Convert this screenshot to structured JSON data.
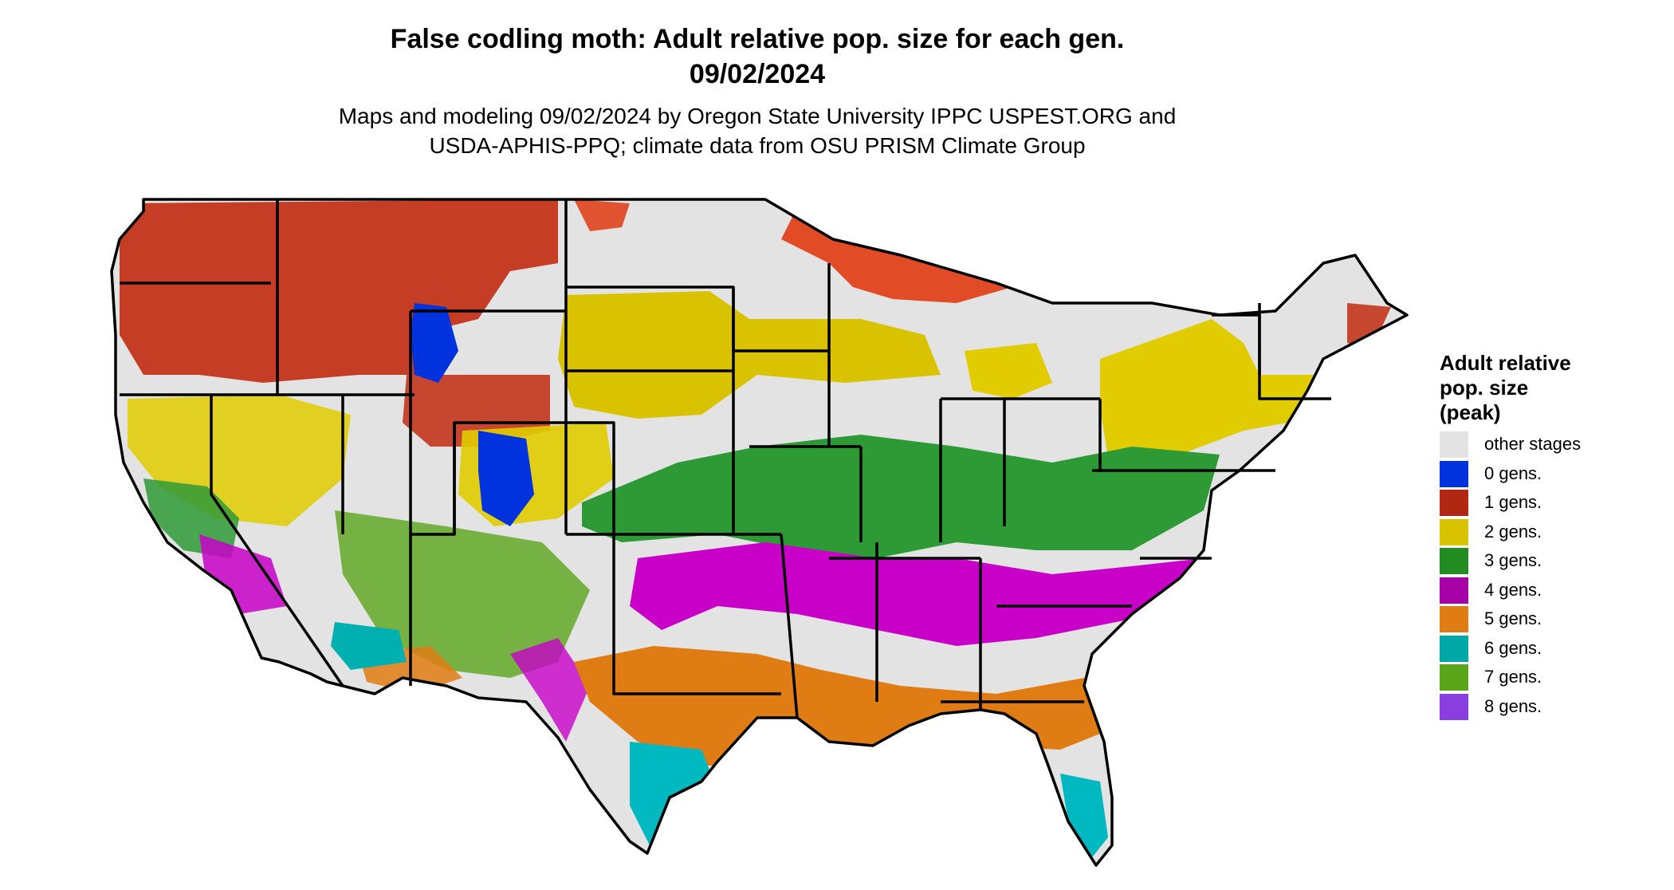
{
  "title": {
    "line1": "False codling moth: Adult relative pop. size for each gen.",
    "line2": "09/02/2024"
  },
  "subtitle": {
    "line1": "Maps and modeling 09/02/2024 by Oregon State University IPPC USPEST.ORG and",
    "line2": "USDA-APHIS-PPQ; climate data from OSU PRISM Climate Group"
  },
  "legend": {
    "title_lines": [
      "Adult relative",
      "pop. size",
      "(peak)"
    ],
    "items": [
      {
        "label": "other stages",
        "color": "#e3e3e3"
      },
      {
        "label": "0 gens.",
        "color": "#0033dd"
      },
      {
        "label": "1 gens.",
        "color": "#b22714"
      },
      {
        "label": "2 gens.",
        "color": "#d9c300"
      },
      {
        "label": "3 gens.",
        "color": "#228b22"
      },
      {
        "label": "4 gens.",
        "color": "#a800a8"
      },
      {
        "label": "5 gens.",
        "color": "#e07c14"
      },
      {
        "label": "6 gens.",
        "color": "#00a7a7"
      },
      {
        "label": "7 gens.",
        "color": "#5aa51a"
      },
      {
        "label": "8 gens.",
        "color": "#8a3ee0"
      }
    ]
  },
  "map": {
    "land_color": "#e3e3e3",
    "border_color": "#000000",
    "region": "Contiguous United States"
  }
}
